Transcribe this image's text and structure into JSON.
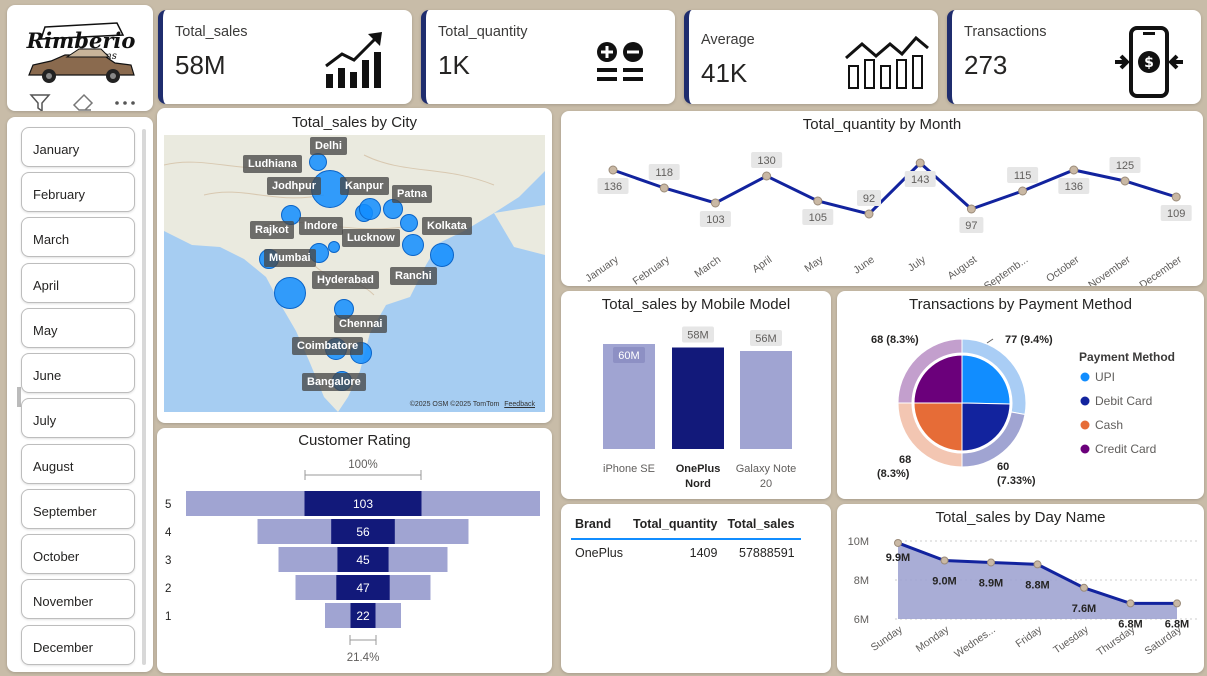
{
  "logo": {
    "brand": "Rimberio",
    "sub": "Customs"
  },
  "kpis": [
    {
      "label": "Total_sales",
      "value": "58M",
      "icon": "growth-chart-icon"
    },
    {
      "label": "Total_quantity",
      "value": "1K",
      "icon": "calculator-icon"
    },
    {
      "label": "Average",
      "value": "41K",
      "icon": "bar-trend-icon"
    },
    {
      "label": "Transactions",
      "value": "273",
      "icon": "mobile-payment-icon"
    }
  ],
  "months": [
    "January",
    "February",
    "March",
    "April",
    "May",
    "June",
    "July",
    "August",
    "September",
    "October",
    "November",
    "December"
  ],
  "city_map": {
    "title": "Total_sales by City",
    "cities": [
      "Delhi",
      "Ludhiana",
      "Jodhpur",
      "Kanpur",
      "Patna",
      "Indore",
      "Rajkot",
      "Lucknow",
      "Kolkata",
      "Mumbai",
      "Hyderabad",
      "Ranchi",
      "Chennai",
      "Coimbatore",
      "Bangalore"
    ],
    "attribution": "©2025 OSM ©2025 TomTom",
    "feedback": "Feedback"
  },
  "qty_month": {
    "title": "Total_quantity by Month",
    "categories": [
      "January",
      "February",
      "March",
      "April",
      "May",
      "June",
      "July",
      "August",
      "Septemb...",
      "October",
      "November",
      "December"
    ],
    "values": [
      136,
      118,
      103,
      130,
      105,
      92,
      143,
      97,
      115,
      136,
      125,
      109
    ],
    "color": "#12239e"
  },
  "mobile_model": {
    "title": "Total_sales by Mobile Model",
    "categories": [
      "iPhone SE",
      "OnePlus Nord",
      "Galaxy Note 20"
    ],
    "values": [
      60,
      58,
      56
    ],
    "labels": [
      "60M",
      "58M",
      "56M"
    ],
    "highlight": "OnePlus Nord",
    "colors": {
      "base": "#a0a4d2",
      "highlight": "#12197a"
    }
  },
  "payment": {
    "title": "Transactions by Payment Method",
    "legend_title": "Payment Method",
    "methods": [
      {
        "name": "UPI",
        "color": "#118dff"
      },
      {
        "name": "Debit Card",
        "color": "#12239e"
      },
      {
        "name": "Cash",
        "color": "#e66c37"
      },
      {
        "name": "Credit Card",
        "color": "#6b007b"
      }
    ],
    "outer_colors": [
      "#a9cdf5",
      "#a0a4d2",
      "#f3c6b2",
      "#c39fcd"
    ],
    "labels": {
      "upi": "77 (9.4%)",
      "credit": "68 (8.3%)",
      "cash_a": "68",
      "cash_b": "(8.3%)",
      "debit_a": "60",
      "debit_b": "(7.33%)"
    }
  },
  "rating": {
    "title": "Customer Rating",
    "top_pct": "100%",
    "bottom_pct": "21.4%",
    "levels": [
      "5",
      "4",
      "3",
      "2",
      "1"
    ],
    "values": [
      103,
      56,
      45,
      47,
      22
    ],
    "colors": {
      "outer": "#a0a4d2",
      "inner": "#12197a"
    }
  },
  "brand_table": {
    "headers": [
      "Brand",
      "Total_quantity",
      "Total_sales"
    ],
    "rows": [
      [
        "OnePlus",
        "1409",
        "57888591"
      ]
    ]
  },
  "day_sales": {
    "title": "Total_sales by Day Name",
    "categories": [
      "Sunday",
      "Monday",
      "Wednes...",
      "Friday",
      "Tuesday",
      "Thursday",
      "Saturday"
    ],
    "values": [
      9.9,
      9.0,
      8.9,
      8.8,
      7.6,
      6.8,
      6.8
    ],
    "labels": [
      "9.9M",
      "9.0M",
      "8.9M",
      "8.8M",
      "7.6M",
      "6.8M",
      "6.8M"
    ],
    "yticks": [
      "10M",
      "8M",
      "6M"
    ],
    "ylim": [
      6,
      10
    ],
    "color": "#12239e",
    "fill": "#a0a4d2"
  }
}
